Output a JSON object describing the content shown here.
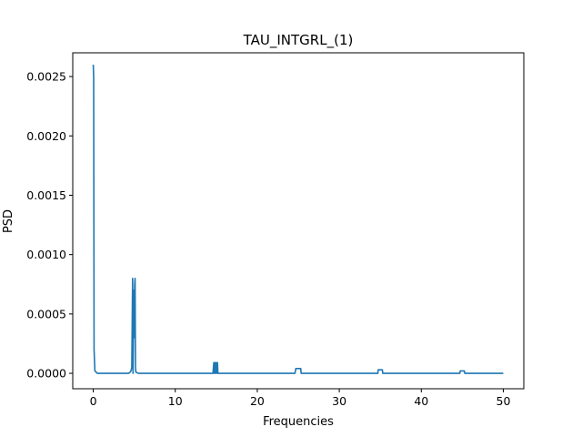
{
  "chart_data": {
    "type": "line",
    "title": "TAU_INTGRL_(1)",
    "xlabel": "Frequencies",
    "ylabel": "PSD",
    "xlim": [
      -2.5,
      52.5
    ],
    "ylim": [
      -0.00013,
      0.0027
    ],
    "xticks": [
      0,
      10,
      20,
      30,
      40,
      50
    ],
    "xtick_labels": [
      "0",
      "10",
      "20",
      "30",
      "40",
      "50"
    ],
    "yticks": [
      0.0,
      0.0005,
      0.001,
      0.0015,
      0.002,
      0.0025
    ],
    "ytick_labels": [
      "0.0000",
      "0.0005",
      "0.0010",
      "0.0015",
      "0.0020",
      "0.0025"
    ],
    "grid": false,
    "color": "#1f77b4",
    "series": [
      {
        "points": [
          [
            0.0,
            0.0026
          ],
          [
            0.05,
            0.0025
          ],
          [
            0.1,
            0.0002
          ],
          [
            0.2,
            2e-05
          ],
          [
            0.5,
            0.0
          ],
          [
            4.3,
            0.0
          ],
          [
            4.5,
            1e-05
          ],
          [
            4.6,
            2e-05
          ],
          [
            4.7,
            5e-05
          ],
          [
            4.8,
            0.0008
          ],
          [
            4.85,
            0.0
          ],
          [
            4.95,
            0.0007
          ],
          [
            5.0,
            0.0003
          ],
          [
            5.05,
            0.00075
          ],
          [
            5.1,
            0.0008
          ],
          [
            5.15,
            5e-05
          ],
          [
            5.2,
            1e-05
          ],
          [
            5.5,
            0.0
          ],
          [
            14.6,
            0.0
          ],
          [
            14.7,
            9e-05
          ],
          [
            14.75,
            0.0
          ],
          [
            14.85,
            9e-05
          ],
          [
            14.9,
            0.0
          ],
          [
            15.0,
            9e-05
          ],
          [
            15.05,
            0.0
          ],
          [
            15.15,
            9e-05
          ],
          [
            15.2,
            0.0
          ],
          [
            24.6,
            0.0
          ],
          [
            24.7,
            4e-05
          ],
          [
            25.3,
            4e-05
          ],
          [
            25.35,
            0.0
          ],
          [
            34.7,
            0.0
          ],
          [
            34.75,
            3e-05
          ],
          [
            35.25,
            3e-05
          ],
          [
            35.3,
            0.0
          ],
          [
            44.7,
            0.0
          ],
          [
            44.75,
            2e-05
          ],
          [
            45.25,
            2e-05
          ],
          [
            45.3,
            0.0
          ],
          [
            50.0,
            0.0
          ]
        ]
      }
    ]
  }
}
